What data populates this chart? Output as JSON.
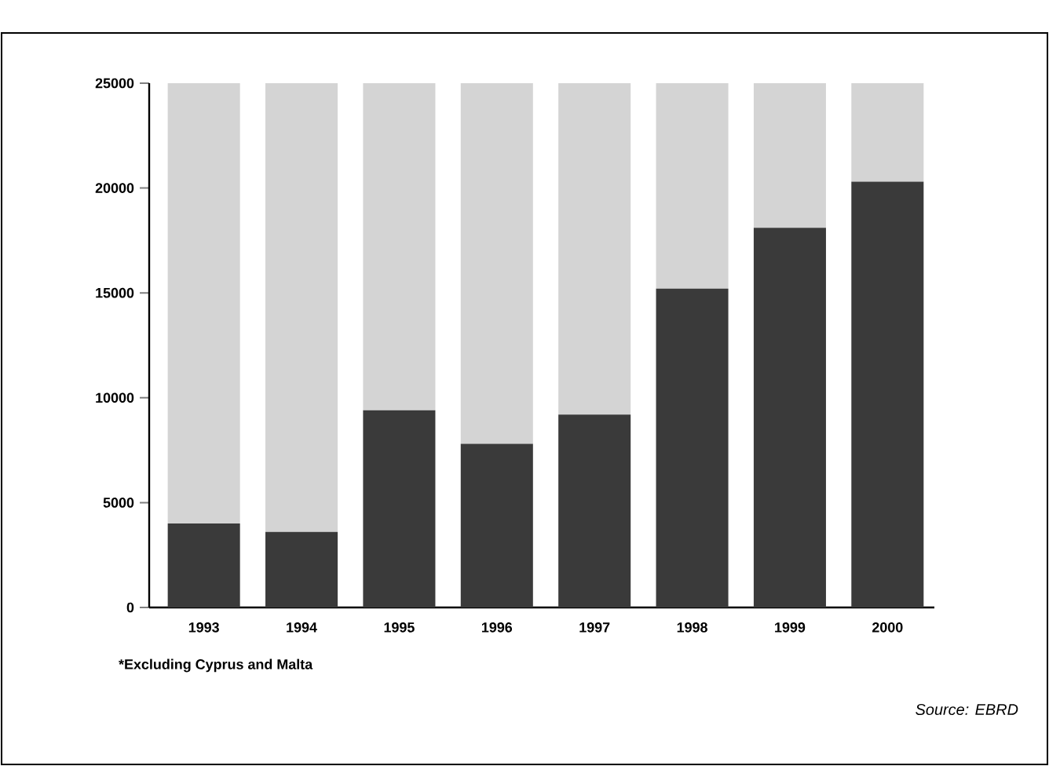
{
  "chart_data": {
    "type": "bar",
    "stacked": true,
    "categories": [
      "1993",
      "1994",
      "1995",
      "1996",
      "1997",
      "1998",
      "1999",
      "2000"
    ],
    "series": [
      {
        "color": "#3a3a3a",
        "values": [
          4000,
          3600,
          9400,
          7800,
          9200,
          15200,
          18100,
          20300
        ]
      },
      {
        "color": "#d4d4d4",
        "values": [
          21000,
          21400,
          15600,
          17200,
          15800,
          9800,
          6900,
          4700
        ]
      }
    ],
    "ylim": [
      0,
      25000
    ],
    "yticks": [
      0,
      5000,
      10000,
      15000,
      20000,
      25000
    ],
    "annotations": [
      "*Excluding Cyprus and Malta",
      "Source: EBRD"
    ]
  }
}
